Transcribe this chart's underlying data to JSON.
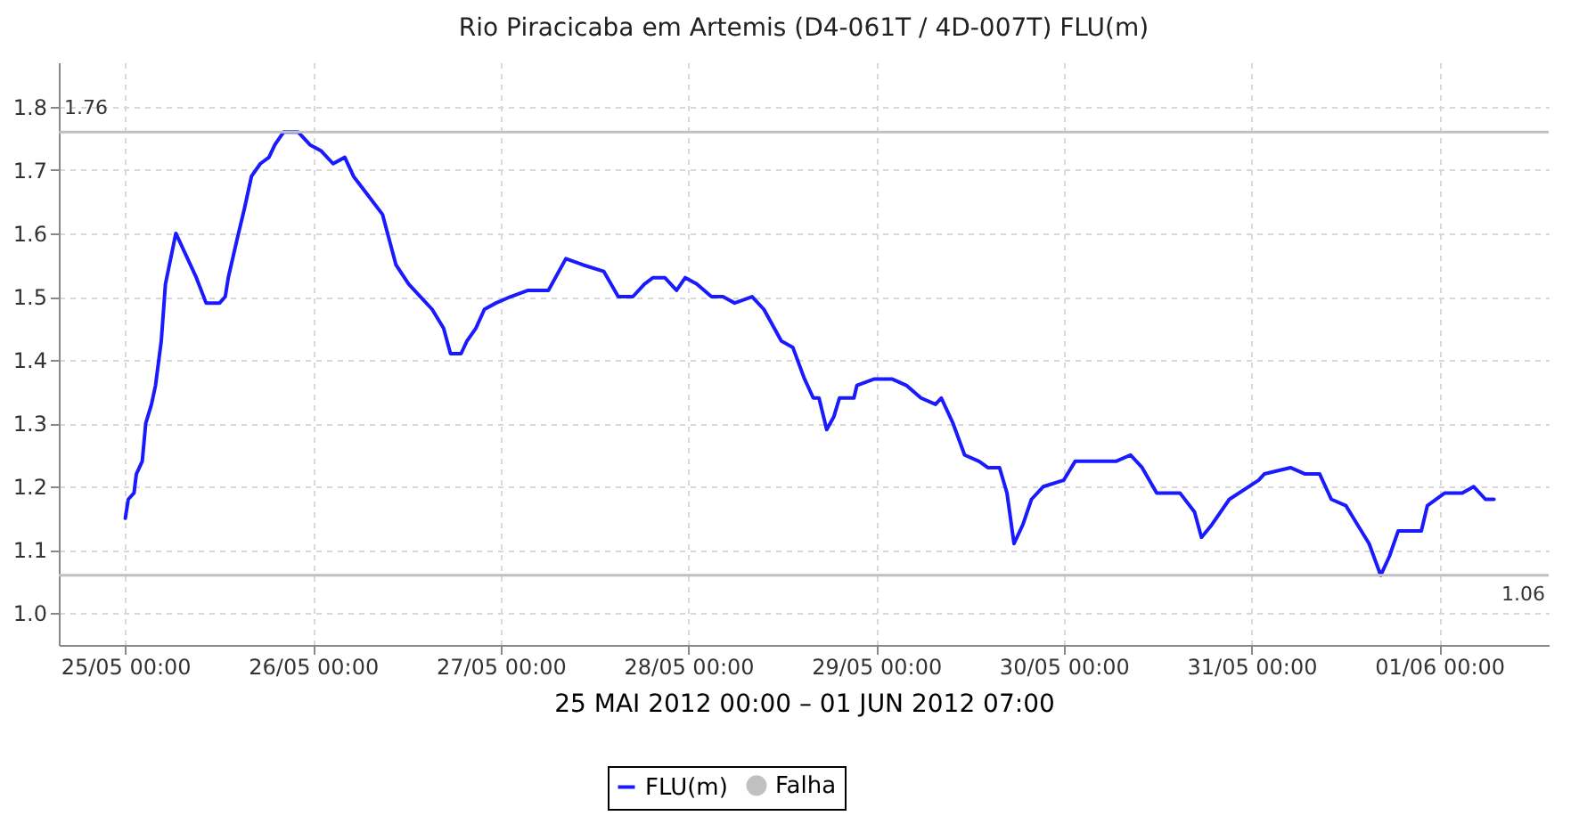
{
  "chart_data": {
    "type": "line",
    "title": "Rio Piracicaba em Artemis (D4-061T / 4D-007T) FLU(m)",
    "xlabel": "25 MAI 2012 00:00 – 01 JUN 2012 07:00",
    "x": [
      "2012-05-25T00:00",
      "2012-05-25T00:23",
      "2012-05-25T01:07",
      "2012-05-25T01:25",
      "2012-05-25T02:10",
      "2012-05-25T02:37",
      "2012-05-25T03:21",
      "2012-05-25T03:52",
      "2012-05-25T04:36",
      "2012-05-25T05:08",
      "2012-05-25T06:28",
      "2012-05-25T07:58",
      "2012-05-25T09:05",
      "2012-05-25T10:20",
      "2012-05-25T12:04",
      "2012-05-25T12:47",
      "2012-05-25T13:10",
      "2012-05-25T14:17",
      "2012-05-25T15:15",
      "2012-05-25T16:08",
      "2012-05-25T17:16",
      "2012-05-25T18:22",
      "2012-05-25T19:08",
      "2012-05-25T20:15",
      "2012-05-25T22:06",
      "2012-05-25T23:36",
      "2012-05-26T01:04",
      "2012-05-26T02:34",
      "2012-05-26T04:04",
      "2012-05-26T05:11",
      "2012-05-26T07:02",
      "2012-05-26T08:53",
      "2012-05-26T10:37",
      "2012-05-26T12:14",
      "2012-05-26T13:44",
      "2012-05-26T15:14",
      "2012-05-26T16:42",
      "2012-05-26T17:35",
      "2012-05-26T18:56",
      "2012-05-26T19:41",
      "2012-05-26T20:49",
      "2012-05-26T21:55",
      "2012-05-26T23:24",
      "2012-05-27T01:16",
      "2012-05-27T03:31",
      "2012-05-27T06:06",
      "2012-05-27T08:20",
      "2012-05-27T10:34",
      "2012-05-27T13:10",
      "2012-05-27T15:02",
      "2012-05-27T16:54",
      "2012-05-27T18:23",
      "2012-05-27T19:29",
      "2012-05-27T20:59",
      "2012-05-27T22:29",
      "2012-05-27T23:36",
      "2012-05-28T01:04",
      "2012-05-28T02:57",
      "2012-05-28T04:25",
      "2012-05-28T05:55",
      "2012-05-28T08:09",
      "2012-05-28T09:39",
      "2012-05-28T11:53",
      "2012-05-28T13:21",
      "2012-05-28T14:51",
      "2012-05-28T15:58",
      "2012-05-28T16:42",
      "2012-05-28T17:41",
      "2012-05-28T18:35",
      "2012-05-28T19:19",
      "2012-05-28T21:10",
      "2012-05-28T21:33",
      "2012-05-28T23:47",
      "2012-05-29T02:01",
      "2012-05-29T03:52",
      "2012-05-29T05:44",
      "2012-05-29T07:36",
      "2012-05-29T08:20",
      "2012-05-29T09:50",
      "2012-05-29T11:19",
      "2012-05-29T13:10",
      "2012-05-29T14:17",
      "2012-05-29T15:47",
      "2012-05-29T16:44",
      "2012-05-29T17:38",
      "2012-05-29T18:46",
      "2012-05-29T19:52",
      "2012-05-29T21:22",
      "2012-05-29T23:58",
      "2012-05-30T01:27",
      "2012-05-30T03:41",
      "2012-05-30T06:40",
      "2012-05-30T08:32",
      "2012-05-30T10:01",
      "2012-05-30T11:53",
      "2012-05-30T14:51",
      "2012-05-30T16:43",
      "2012-05-30T17:36",
      "2012-05-30T18:56",
      "2012-05-30T21:10",
      "2012-05-31T00:54",
      "2012-05-31T01:38",
      "2012-05-31T04:59",
      "2012-05-31T06:52",
      "2012-05-31T08:43",
      "2012-05-31T10:12",
      "2012-05-31T12:04",
      "2012-05-31T13:33",
      "2012-05-31T15:02",
      "2012-05-31T16:31",
      "2012-05-31T17:38",
      "2012-05-31T18:45",
      "2012-05-31T21:43",
      "2012-05-31T22:29",
      "2012-06-01T00:43",
      "2012-06-01T02:56",
      "2012-06-01T04:25",
      "2012-06-01T05:55",
      "2012-06-01T07:00"
    ],
    "series": [
      {
        "name": "FLU(m)",
        "color": "#1a1aff",
        "values": [
          1.15,
          1.18,
          1.19,
          1.22,
          1.24,
          1.3,
          1.33,
          1.36,
          1.43,
          1.52,
          1.6,
          1.56,
          1.53,
          1.49,
          1.49,
          1.5,
          1.53,
          1.59,
          1.64,
          1.69,
          1.71,
          1.72,
          1.74,
          1.76,
          1.76,
          1.74,
          1.73,
          1.71,
          1.72,
          1.69,
          1.66,
          1.63,
          1.55,
          1.52,
          1.5,
          1.48,
          1.45,
          1.41,
          1.41,
          1.43,
          1.45,
          1.48,
          1.49,
          1.5,
          1.51,
          1.51,
          1.56,
          1.55,
          1.54,
          1.5,
          1.5,
          1.52,
          1.53,
          1.53,
          1.51,
          1.53,
          1.52,
          1.5,
          1.5,
          1.49,
          1.5,
          1.48,
          1.43,
          1.42,
          1.37,
          1.34,
          1.34,
          1.29,
          1.31,
          1.34,
          1.34,
          1.36,
          1.37,
          1.37,
          1.36,
          1.34,
          1.33,
          1.34,
          1.3,
          1.25,
          1.24,
          1.23,
          1.23,
          1.19,
          1.11,
          1.14,
          1.18,
          1.2,
          1.21,
          1.24,
          1.24,
          1.24,
          1.25,
          1.23,
          1.19,
          1.19,
          1.16,
          1.12,
          1.14,
          1.18,
          1.21,
          1.22,
          1.23,
          1.22,
          1.22,
          1.18,
          1.17,
          1.14,
          1.11,
          1.06,
          1.09,
          1.13,
          1.13,
          1.17,
          1.19,
          1.19,
          1.2,
          1.18,
          1.18
        ]
      },
      {
        "name": "Falha",
        "color": "#c0c0c0",
        "type": "scatter",
        "values": [
          null,
          null,
          null,
          null,
          null,
          null,
          null,
          null,
          null,
          null,
          null,
          null,
          null,
          null,
          null,
          null,
          null,
          null,
          null,
          null,
          null,
          null,
          null,
          null,
          null,
          null,
          null,
          null,
          null,
          null,
          null,
          null,
          null,
          null,
          null,
          null,
          null,
          null,
          null,
          null,
          null,
          null,
          null,
          null,
          null,
          null,
          null,
          null,
          null,
          null,
          null,
          null,
          null,
          null,
          null,
          null,
          null,
          null,
          null,
          null,
          null,
          null,
          null,
          null,
          null,
          null,
          null,
          null,
          null,
          null,
          null,
          null,
          null,
          null,
          null,
          null,
          null,
          null,
          null,
          null,
          null,
          null,
          null,
          null,
          null,
          null,
          null,
          null,
          null,
          null,
          null,
          null,
          null,
          null,
          null,
          null,
          null,
          null,
          null,
          null,
          null,
          null,
          null,
          null,
          null,
          null,
          null,
          null,
          null,
          null,
          null,
          null,
          null,
          null,
          null,
          null,
          null,
          null,
          null
        ]
      }
    ],
    "xlim": [
      "2012-05-24T15:30",
      "2012-06-01T14:00"
    ],
    "xticks": [
      {
        "value": "2012-05-25T00:00",
        "label": "25/05 00:00"
      },
      {
        "value": "2012-05-26T00:00",
        "label": "26/05 00:00"
      },
      {
        "value": "2012-05-27T00:00",
        "label": "27/05 00:00"
      },
      {
        "value": "2012-05-28T00:00",
        "label": "28/05 00:00"
      },
      {
        "value": "2012-05-29T00:00",
        "label": "29/05 00:00"
      },
      {
        "value": "2012-05-30T00:00",
        "label": "30/05 00:00"
      },
      {
        "value": "2012-05-31T00:00",
        "label": "31/05 00:00"
      },
      {
        "value": "2012-06-01T00:00",
        "label": "01/06 00:00"
      }
    ],
    "ylim": [
      0.95,
      1.87
    ],
    "yticks": [
      {
        "value": 1,
        "label": "1.0"
      },
      1.1,
      1.2,
      1.3,
      1.4,
      1.5,
      1.6,
      1.7,
      1.8
    ],
    "ref_lines": [
      {
        "axis": "y",
        "value": 1.76,
        "label": "1.76",
        "color": "#c0c0c0"
      },
      {
        "axis": "y",
        "value": 1.06,
        "label": "1.06",
        "color": "#c0c0c0"
      }
    ],
    "grid": true,
    "legend": "bottom"
  }
}
